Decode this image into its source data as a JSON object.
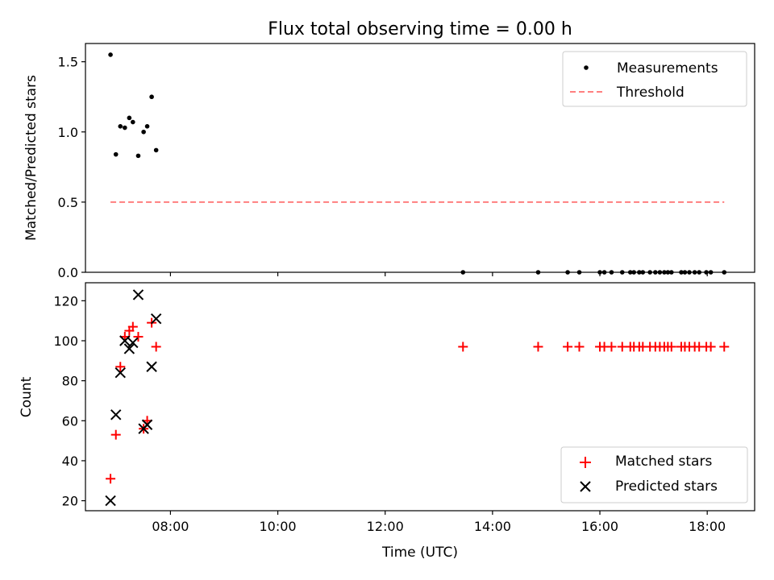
{
  "chart_data": [
    {
      "type": "scatter",
      "title": "Flux total observing time = 0.00 h",
      "ylabel": "Matched/Predicted stars",
      "xlabel": "",
      "xlim": [
        "06:25",
        "18:53"
      ],
      "ylim": [
        0,
        1.63
      ],
      "yticks": [
        0.0,
        0.5,
        1.0,
        1.5
      ],
      "ytick_labels": [
        "0.0",
        "0.5",
        "1.0",
        "1.5"
      ],
      "xticks": [
        "08:00",
        "10:00",
        "12:00",
        "14:00",
        "16:00",
        "18:00"
      ],
      "tick_labels_visible": false,
      "legend_position": "top-right",
      "series": [
        {
          "name": "Measurements",
          "kind": "points",
          "color": "#000000",
          "x": [
            "06:53",
            "06:59",
            "07:04",
            "07:09",
            "07:14",
            "07:18",
            "07:24",
            "07:30",
            "07:34",
            "07:39",
            "07:44",
            "13:27",
            "14:51",
            "15:24",
            "15:37",
            "16:00",
            "16:05",
            "16:13",
            "16:25",
            "16:34",
            "16:38",
            "16:44",
            "16:48",
            "16:56",
            "17:02",
            "17:07",
            "17:12",
            "17:16",
            "17:20",
            "17:31",
            "17:35",
            "17:40",
            "17:46",
            "17:51",
            "17:59",
            "18:04",
            "18:19"
          ],
          "y": [
            1.55,
            0.84,
            1.04,
            1.03,
            1.1,
            1.07,
            0.83,
            1.0,
            1.04,
            1.25,
            0.87,
            0,
            0,
            0,
            0,
            0,
            0,
            0,
            0,
            0,
            0,
            0,
            0,
            0,
            0,
            0,
            0,
            0,
            0,
            0,
            0,
            0,
            0,
            0,
            0,
            0,
            0
          ]
        },
        {
          "name": "Threshold",
          "kind": "dashed-line",
          "color": "#ff7f7f",
          "x": [
            "06:53",
            "18:19"
          ],
          "y": [
            0.5,
            0.5
          ]
        }
      ]
    },
    {
      "type": "scatter",
      "title": "",
      "xlabel": "Time (UTC)",
      "ylabel": "Count",
      "xlim": [
        "06:25",
        "18:53"
      ],
      "ylim": [
        15,
        129
      ],
      "yticks": [
        20,
        40,
        60,
        80,
        100,
        120
      ],
      "ytick_labels": [
        "20",
        "40",
        "60",
        "80",
        "100",
        "120"
      ],
      "xticks": [
        "08:00",
        "10:00",
        "12:00",
        "14:00",
        "16:00",
        "18:00"
      ],
      "xtick_labels": [
        "08:00",
        "10:00",
        "12:00",
        "14:00",
        "16:00",
        "18:00"
      ],
      "legend_position": "bottom-right",
      "series": [
        {
          "name": "Matched stars",
          "marker": "+",
          "color": "#ff0000",
          "x": [
            "06:53",
            "06:59",
            "07:04",
            "07:09",
            "07:14",
            "07:18",
            "07:24",
            "07:30",
            "07:34",
            "07:39",
            "07:44",
            "13:27",
            "14:51",
            "15:24",
            "15:37",
            "16:00",
            "16:05",
            "16:13",
            "16:25",
            "16:34",
            "16:38",
            "16:44",
            "16:48",
            "16:56",
            "17:02",
            "17:07",
            "17:12",
            "17:16",
            "17:20",
            "17:31",
            "17:35",
            "17:40",
            "17:46",
            "17:51",
            "17:59",
            "18:04",
            "18:19"
          ],
          "y": [
            31,
            53,
            87,
            102,
            105,
            107,
            102,
            56,
            60,
            109,
            97,
            97,
            97,
            97,
            97,
            97,
            97,
            97,
            97,
            97,
            97,
            97,
            97,
            97,
            97,
            97,
            97,
            97,
            97,
            97,
            97,
            97,
            97,
            97,
            97,
            97,
            97
          ]
        },
        {
          "name": "Predicted stars",
          "marker": "x",
          "color": "#000000",
          "x": [
            "06:53",
            "06:59",
            "07:04",
            "07:09",
            "07:14",
            "07:18",
            "07:24",
            "07:30",
            "07:34",
            "07:39",
            "07:44"
          ],
          "y": [
            20,
            63,
            84,
            100,
            96,
            99,
            123,
            56,
            58,
            87,
            111
          ]
        }
      ]
    }
  ]
}
